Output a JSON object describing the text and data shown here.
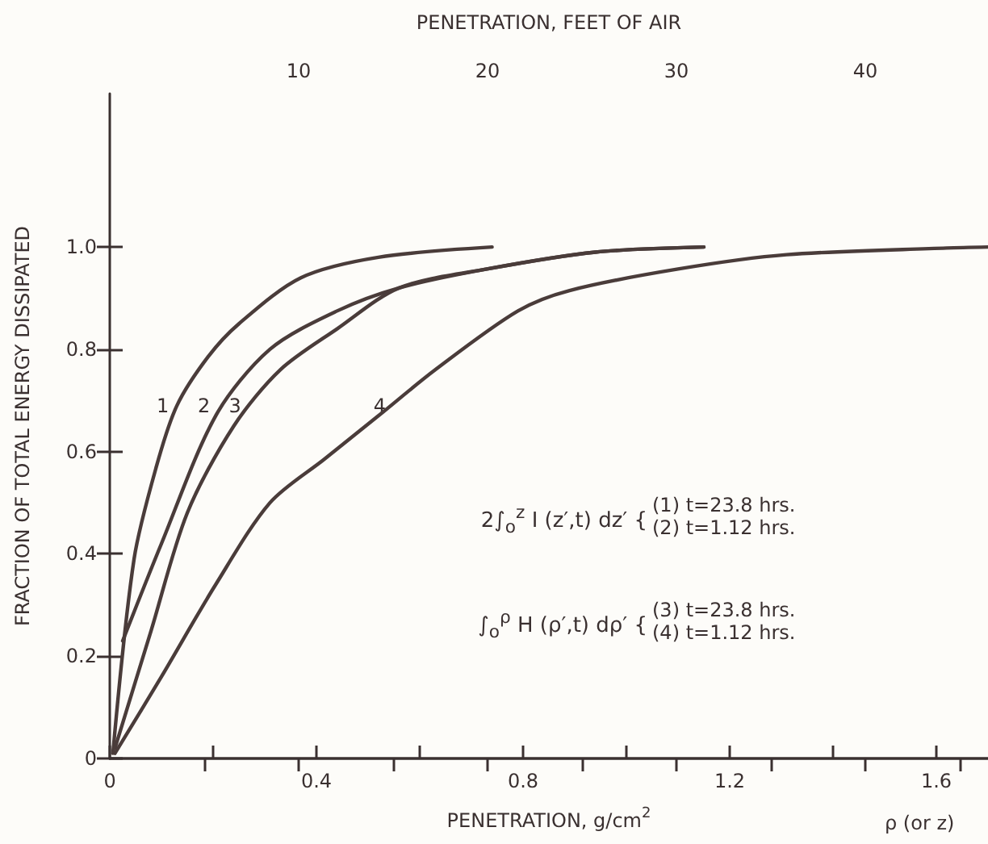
{
  "chart_data": {
    "type": "line",
    "xlabel": "PENETRATION, g/cm$^{2}$",
    "x2label": "PENETRATION, FEET OF AIR",
    "ylabel": "FRACTION OF TOTAL ENERGY DISSIPATED",
    "xlim": [
      0,
      1.7
    ],
    "xticks": [
      0,
      {
        "value": 0.2,
        "label": null
      },
      0.4,
      {
        "value": 0.6,
        "label": null
      },
      0.8,
      {
        "value": 1.0,
        "label": null
      },
      1.2,
      {
        "value": 1.4,
        "label": null
      },
      1.6
    ],
    "x2lim": [
      0,
      46.5
    ],
    "x2ticks": [
      {
        "value": 5,
        "label": null
      },
      10,
      {
        "value": 15,
        "label": null
      },
      20,
      {
        "value": 25,
        "label": null
      },
      30,
      {
        "value": 35,
        "label": null
      },
      40,
      {
        "value": 45,
        "label": null
      }
    ],
    "ylim": [
      0,
      1.3
    ],
    "yticks": [
      0,
      0.2,
      0.4,
      0.6,
      0.8,
      {
        "value": 1.0,
        "label": "1.0"
      }
    ],
    "grid": false,
    "marker": "none",
    "line_style": "solid",
    "series": [
      {
        "color": "#4a3c3a",
        "x": [
          0.006,
          0.047,
          0.09,
          0.13,
          0.19,
          0.25,
          0.37,
          0.52,
          0.74
        ],
        "values": [
          0.01,
          0.39,
          0.57,
          0.69,
          0.785,
          0.85,
          0.94,
          0.98,
          1.0
        ]
      },
      {
        "color": "#4a3c3a",
        "x": [
          0.025,
          0.1,
          0.205,
          0.31,
          0.44,
          0.56,
          0.73,
          0.94,
          1.15
        ],
        "values": [
          0.23,
          0.42,
          0.67,
          0.8,
          0.875,
          0.92,
          0.957,
          0.99,
          1.0
        ]
      },
      {
        "color": "#4a3c3a",
        "x": [
          0.01,
          0.08,
          0.15,
          0.24,
          0.33,
          0.44,
          0.56,
          0.73,
          0.94,
          1.15
        ],
        "values": [
          0.02,
          0.25,
          0.48,
          0.65,
          0.76,
          0.84,
          0.92,
          0.957,
          0.99,
          1.0
        ]
      },
      {
        "color": "#4a3c3a",
        "x": [
          0.01,
          0.1,
          0.205,
          0.31,
          0.415,
          0.52,
          0.63,
          0.79,
          0.89,
          1.1,
          1.31,
          1.62,
          1.7
        ],
        "values": [
          0.01,
          0.16,
          0.34,
          0.5,
          0.585,
          0.67,
          0.76,
          0.875,
          0.915,
          0.957,
          0.985,
          0.998,
          1.0
        ]
      }
    ],
    "annotations": [
      {
        "text": "1",
        "x": 0.13,
        "y": 0.69
      },
      {
        "text": "2",
        "x": 0.21,
        "y": 0.69
      },
      {
        "text": "3",
        "x": 0.27,
        "y": 0.69
      },
      {
        "text": "4",
        "x": 0.55,
        "y": 0.69
      },
      "2∫$_{o}$$^{z}$ I (z′,t) dz′ {",
      "(1) t=23.8 hrs.",
      "(2) t=1.12 hrs.",
      "∫$_{o}$$^{ρ}$ H (ρ′,t) dρ′ {",
      "(3) t=23.8 hrs.",
      "(4) t=1.12 hrs.",
      "ρ (or z)"
    ]
  }
}
